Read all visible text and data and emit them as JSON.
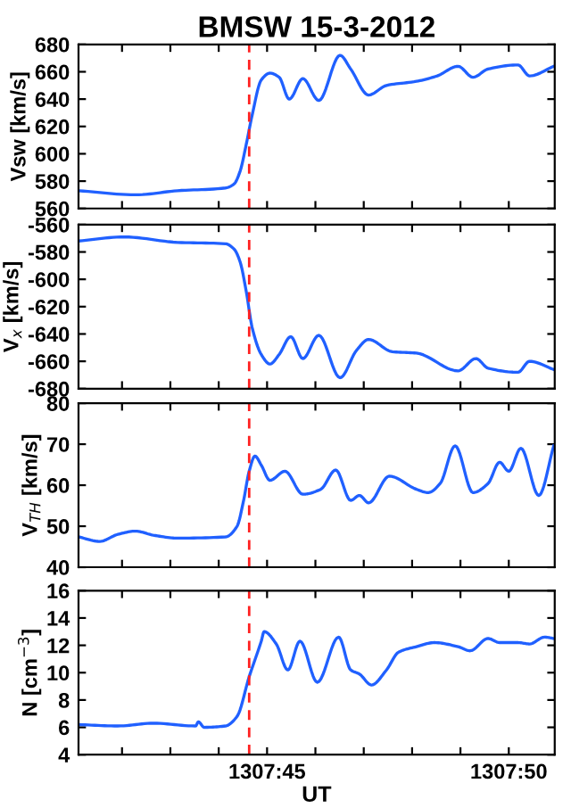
{
  "chart_data": [
    {
      "type": "line",
      "title": "BMSW 15-3-2012",
      "ylabel": "Vsw [km/s]",
      "tick_labels": "y",
      "x": [
        "2012-03-15T13:07:41.10",
        "2012-03-15T13:07:42.28",
        "2012-03-15T13:07:43.15",
        "2012-03-15T13:07:44.14",
        "2012-03-15T13:07:44.32",
        "2012-03-15T13:07:44.44",
        "2012-03-15T13:07:44.57",
        "2012-03-15T13:07:44.69",
        "2012-03-15T13:07:44.88",
        "2012-03-15T13:07:45.06",
        "2012-03-15T13:07:45.25",
        "2012-03-15T13:07:45.46",
        "2012-03-15T13:07:45.74",
        "2012-03-15T13:07:46.07",
        "2012-03-15T13:07:46.51",
        "2012-03-15T13:07:46.73",
        "2012-03-15T13:07:47.10",
        "2012-03-15T13:07:47.47",
        "2012-03-15T13:07:48.09",
        "2012-03-15T13:07:48.52",
        "2012-03-15T13:07:48.95",
        "2012-03-15T13:07:49.26",
        "2012-03-15T13:07:49.57",
        "2012-03-15T13:07:50.19",
        "2012-03-15T13:07:50.43",
        "2012-03-15T13:07:50.93"
      ],
      "series": [
        {
          "color": "#2060ff",
          "values": [
            573,
            570,
            573,
            575,
            578,
            587,
            607,
            628,
            654,
            659,
            656,
            640,
            655,
            639,
            672,
            662,
            643,
            650,
            653,
            657,
            664,
            656,
            662,
            665,
            657,
            664
          ]
        }
      ],
      "xlim": [
        "2012-03-15T13:07:41.10",
        "2012-03-15T13:07:50.95"
      ],
      "xticks": [
        {
          "value": "2012-03-15T13:07:42",
          "label": null
        },
        {
          "value": "2012-03-15T13:07:43",
          "label": null
        },
        {
          "value": "2012-03-15T13:07:44",
          "label": null
        },
        {
          "value": "2012-03-15T13:07:45",
          "label": null
        },
        {
          "value": "2012-03-15T13:07:46",
          "label": null
        },
        {
          "value": "2012-03-15T13:07:47",
          "label": null
        },
        {
          "value": "2012-03-15T13:07:48",
          "label": null
        },
        {
          "value": "2012-03-15T13:07:49",
          "label": null
        },
        {
          "value": "2012-03-15T13:07:50",
          "label": null
        }
      ],
      "ylim": [
        560,
        680
      ],
      "yticks": [
        560,
        580,
        600,
        620,
        640,
        660,
        680
      ],
      "ref_lines": [
        {
          "axis": "x",
          "value": "2012-03-15T13:07:44.63",
          "color": "#ff2020",
          "line_style": "dashed"
        }
      ]
    },
    {
      "type": "line",
      "ylabel": "V$_{x}$ [km/s]",
      "tick_labels": "y",
      "x": [
        "2012-03-15T13:07:41.10",
        "2012-03-15T13:07:42.05",
        "2012-03-15T13:07:43.15",
        "2012-03-15T13:07:44.14",
        "2012-03-15T13:07:44.32",
        "2012-03-15T13:07:44.44",
        "2012-03-15T13:07:44.57",
        "2012-03-15T13:07:44.69",
        "2012-03-15T13:07:44.88",
        "2012-03-15T13:07:45.06",
        "2012-03-15T13:07:45.25",
        "2012-03-15T13:07:45.49",
        "2012-03-15T13:07:45.74",
        "2012-03-15T13:07:46.07",
        "2012-03-15T13:07:46.51",
        "2012-03-15T13:07:46.85",
        "2012-03-15T13:07:47.10",
        "2012-03-15T13:07:47.59",
        "2012-03-15T13:07:48.09",
        "2012-03-15T13:07:48.95",
        "2012-03-15T13:07:49.32",
        "2012-03-15T13:07:49.57",
        "2012-03-15T13:07:50.19",
        "2012-03-15T13:07:50.43",
        "2012-03-15T13:07:50.93"
      ],
      "series": [
        {
          "color": "#2060ff",
          "values": [
            -572,
            -569,
            -573,
            -574,
            -578,
            -587,
            -609,
            -635,
            -655,
            -662,
            -655,
            -642,
            -658,
            -641,
            -672,
            -652,
            -644,
            -653,
            -654,
            -667,
            -658,
            -665,
            -668,
            -660,
            -666
          ]
        }
      ],
      "xlim": [
        "2012-03-15T13:07:41.10",
        "2012-03-15T13:07:50.95"
      ],
      "xticks": [
        {
          "value": "2012-03-15T13:07:42",
          "label": null
        },
        {
          "value": "2012-03-15T13:07:43",
          "label": null
        },
        {
          "value": "2012-03-15T13:07:44",
          "label": null
        },
        {
          "value": "2012-03-15T13:07:45",
          "label": null
        },
        {
          "value": "2012-03-15T13:07:46",
          "label": null
        },
        {
          "value": "2012-03-15T13:07:47",
          "label": null
        },
        {
          "value": "2012-03-15T13:07:48",
          "label": null
        },
        {
          "value": "2012-03-15T13:07:49",
          "label": null
        },
        {
          "value": "2012-03-15T13:07:50",
          "label": null
        }
      ],
      "ylim": [
        -680,
        -560
      ],
      "yticks": [
        -680,
        -660,
        -640,
        -620,
        -600,
        -580,
        -560
      ],
      "ref_lines": [
        {
          "axis": "x",
          "value": "2012-03-15T13:07:44.63",
          "color": "#ff2020",
          "line_style": "dashed"
        }
      ]
    },
    {
      "type": "line",
      "ylabel": "V$_{TH}$ [km/s]",
      "tick_labels": "y",
      "x": [
        "2012-03-15T13:07:41.10",
        "2012-03-15T13:07:41.54",
        "2012-03-15T13:07:41.91",
        "2012-03-15T13:07:42.28",
        "2012-03-15T13:07:42.65",
        "2012-03-15T13:07:43.15",
        "2012-03-15T13:07:44.14",
        "2012-03-15T13:07:44.38",
        "2012-03-15T13:07:44.51",
        "2012-03-15T13:07:44.63",
        "2012-03-15T13:07:44.75",
        "2012-03-15T13:07:44.88",
        "2012-03-15T13:07:45.06",
        "2012-03-15T13:07:45.37",
        "2012-03-15T13:07:45.74",
        "2012-03-15T13:07:46.11",
        "2012-03-15T13:07:46.42",
        "2012-03-15T13:07:46.73",
        "2012-03-15T13:07:46.91",
        "2012-03-15T13:07:47.10",
        "2012-03-15T13:07:47.53",
        "2012-03-15T13:07:48.09",
        "2012-03-15T13:07:48.33",
        "2012-03-15T13:07:48.58",
        "2012-03-15T13:07:48.89",
        "2012-03-15T13:07:49.26",
        "2012-03-15T13:07:49.57",
        "2012-03-15T13:07:49.81",
        "2012-03-15T13:07:50.00",
        "2012-03-15T13:07:50.25",
        "2012-03-15T13:07:50.62",
        "2012-03-15T13:07:50.93"
      ],
      "series": [
        {
          "color": "#2060ff",
          "values": [
            47.4,
            46.3,
            48,
            48.8,
            47.8,
            47.1,
            47.4,
            50,
            56,
            63.4,
            67.1,
            64.9,
            61.2,
            63.4,
            57.8,
            59,
            63.7,
            56.3,
            57.5,
            55.7,
            62.2,
            59,
            58.2,
            60.4,
            69.6,
            58.2,
            60.4,
            65.6,
            63.4,
            69,
            57.5,
            69.6
          ]
        }
      ],
      "xlim": [
        "2012-03-15T13:07:41.10",
        "2012-03-15T13:07:50.95"
      ],
      "xticks": [
        {
          "value": "2012-03-15T13:07:42",
          "label": null
        },
        {
          "value": "2012-03-15T13:07:43",
          "label": null
        },
        {
          "value": "2012-03-15T13:07:44",
          "label": null
        },
        {
          "value": "2012-03-15T13:07:45",
          "label": null
        },
        {
          "value": "2012-03-15T13:07:46",
          "label": null
        },
        {
          "value": "2012-03-15T13:07:47",
          "label": null
        },
        {
          "value": "2012-03-15T13:07:48",
          "label": null
        },
        {
          "value": "2012-03-15T13:07:49",
          "label": null
        },
        {
          "value": "2012-03-15T13:07:50",
          "label": null
        }
      ],
      "ylim": [
        40,
        80
      ],
      "yticks": [
        40,
        50,
        60,
        70,
        80
      ],
      "ref_lines": [
        {
          "axis": "x",
          "value": "2012-03-15T13:07:44.63",
          "color": "#ff2020",
          "line_style": "dashed"
        }
      ]
    },
    {
      "type": "line",
      "ylabel": "N [cm$^{−3}$]",
      "xlabel": "UT",
      "x": [
        "2012-03-15T13:07:41.10",
        "2012-03-15T13:07:41.91",
        "2012-03-15T13:07:42.65",
        "2012-03-15T13:07:43.52",
        "2012-03-15T13:07:43.58",
        "2012-03-15T13:07:43.70",
        "2012-03-15T13:07:44.14",
        "2012-03-15T13:07:44.38",
        "2012-03-15T13:07:44.63",
        "2012-03-15T13:07:44.88",
        "2012-03-15T13:07:44.94",
        "2012-03-15T13:07:45.19",
        "2012-03-15T13:07:45.43",
        "2012-03-15T13:07:45.68",
        "2012-03-15T13:07:46.04",
        "2012-03-15T13:07:46.48",
        "2012-03-15T13:07:46.73",
        "2012-03-15T13:07:46.91",
        "2012-03-15T13:07:47.16",
        "2012-03-15T13:07:47.47",
        "2012-03-15T13:07:47.72",
        "2012-03-15T13:07:48.09",
        "2012-03-15T13:07:48.46",
        "2012-03-15T13:07:48.95",
        "2012-03-15T13:07:49.20",
        "2012-03-15T13:07:49.57",
        "2012-03-15T13:07:49.81",
        "2012-03-15T13:07:50.19",
        "2012-03-15T13:07:50.43",
        "2012-03-15T13:07:50.74",
        "2012-03-15T13:07:50.93"
      ],
      "series": [
        {
          "color": "#2060ff",
          "values": [
            6.2,
            6.1,
            6.3,
            6.1,
            6.4,
            6.0,
            6.1,
            6.8,
            9.7,
            12.3,
            13,
            12.1,
            10.2,
            12.3,
            9.3,
            12.6,
            10.2,
            9.9,
            9.1,
            10.2,
            11.5,
            11.9,
            12.2,
            11.9,
            11.6,
            12.5,
            12.2,
            12.2,
            12.1,
            12.6,
            12.5
          ]
        }
      ],
      "xlim": [
        "2012-03-15T13:07:41.10",
        "2012-03-15T13:07:50.95"
      ],
      "xticks": [
        {
          "value": "2012-03-15T13:07:42",
          "label": null
        },
        {
          "value": "2012-03-15T13:07:43",
          "label": null
        },
        {
          "value": "2012-03-15T13:07:44",
          "label": null
        },
        {
          "value": "2012-03-15T13:07:45",
          "label": "1307:45"
        },
        {
          "value": "2012-03-15T13:07:46",
          "label": null
        },
        {
          "value": "2012-03-15T13:07:47",
          "label": null
        },
        {
          "value": "2012-03-15T13:07:48",
          "label": null
        },
        {
          "value": "2012-03-15T13:07:49",
          "label": null
        },
        {
          "value": "2012-03-15T13:07:50",
          "label": "1307:50"
        }
      ],
      "ylim": [
        4,
        16
      ],
      "yticks": [
        4,
        6,
        8,
        10,
        12,
        14,
        16
      ],
      "ref_lines": [
        {
          "axis": "x",
          "value": "2012-03-15T13:07:44.63",
          "color": "#ff2020",
          "line_style": "dashed"
        }
      ]
    }
  ]
}
